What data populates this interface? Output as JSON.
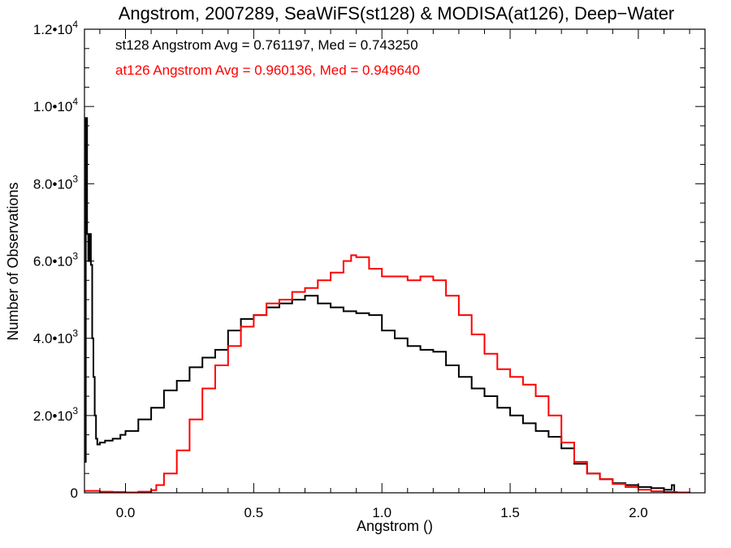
{
  "chart_data": {
    "type": "line",
    "title": "Angstrom, 2007289, SeaWiFS(st128) & MODISA(at126), Deep−Water",
    "xlabel": "Angstrom ()",
    "ylabel": "Number of Observations",
    "xlim": [
      -0.16,
      2.26
    ],
    "ylim": [
      0,
      12000
    ],
    "x_ticks": [
      {
        "value": 0.0,
        "label": "0.0"
      },
      {
        "value": 0.5,
        "label": "0.5"
      },
      {
        "value": 1.0,
        "label": "1.0"
      },
      {
        "value": 1.5,
        "label": "1.5"
      },
      {
        "value": 2.0,
        "label": "2.0"
      }
    ],
    "y_ticks": [
      {
        "value": 0,
        "label": "0",
        "exp": ""
      },
      {
        "value": 2000,
        "label": "2.0•10",
        "exp": "3"
      },
      {
        "value": 4000,
        "label": "4.0•10",
        "exp": "3"
      },
      {
        "value": 6000,
        "label": "6.0•10",
        "exp": "3"
      },
      {
        "value": 8000,
        "label": "8.0•10",
        "exp": "3"
      },
      {
        "value": 10000,
        "label": "1.0•10",
        "exp": "4"
      },
      {
        "value": 12000,
        "label": "1.2•10",
        "exp": "4"
      }
    ],
    "annotations": [
      {
        "text": "st128 Angstrom Avg = 0.761197, Med = 0.743250",
        "color": "#000000"
      },
      {
        "text": "at126 Angstrom Avg = 0.960136, Med = 0.949640",
        "color": "#ff0000"
      }
    ],
    "grid": false,
    "step": true,
    "series": [
      {
        "color": "#000000",
        "x": [
          -0.16,
          -0.155,
          -0.15,
          -0.145,
          -0.14,
          -0.135,
          -0.13,
          -0.125,
          -0.12,
          -0.115,
          -0.11,
          -0.1,
          -0.08,
          -0.05,
          -0.02,
          0.0,
          0.05,
          0.1,
          0.15,
          0.2,
          0.25,
          0.3,
          0.35,
          0.4,
          0.45,
          0.5,
          0.55,
          0.6,
          0.65,
          0.7,
          0.75,
          0.8,
          0.85,
          0.9,
          0.95,
          1.0,
          1.05,
          1.1,
          1.15,
          1.2,
          1.25,
          1.3,
          1.35,
          1.4,
          1.45,
          1.5,
          1.55,
          1.6,
          1.65,
          1.7,
          1.75,
          1.8,
          1.85,
          1.9,
          1.95,
          2.0,
          2.05,
          2.1,
          2.13,
          2.14
        ],
        "y": [
          800,
          9700,
          6700,
          6000,
          6700,
          5900,
          4000,
          3000,
          2000,
          1400,
          1250,
          1300,
          1350,
          1400,
          1500,
          1600,
          1900,
          2200,
          2650,
          2900,
          3250,
          3500,
          3700,
          4200,
          4500,
          4600,
          4800,
          4900,
          5000,
          5100,
          4900,
          4800,
          4700,
          4650,
          4600,
          4200,
          4000,
          3800,
          3700,
          3650,
          3300,
          3000,
          2700,
          2500,
          2200,
          2000,
          1800,
          1600,
          1450,
          1150,
          750,
          500,
          350,
          250,
          200,
          150,
          120,
          80,
          200,
          0
        ]
      },
      {
        "color": "#ff0000",
        "x": [
          -0.16,
          -0.1,
          -0.05,
          0.0,
          0.05,
          0.1,
          0.12,
          0.15,
          0.2,
          0.25,
          0.3,
          0.35,
          0.4,
          0.45,
          0.5,
          0.55,
          0.6,
          0.65,
          0.7,
          0.75,
          0.8,
          0.85,
          0.88,
          0.9,
          0.95,
          1.0,
          1.05,
          1.1,
          1.15,
          1.2,
          1.25,
          1.3,
          1.35,
          1.4,
          1.45,
          1.5,
          1.55,
          1.6,
          1.65,
          1.7,
          1.75,
          1.8,
          1.85,
          1.9,
          1.95,
          2.0,
          2.05,
          2.1,
          2.15,
          2.2
        ],
        "y": [
          50,
          30,
          20,
          10,
          30,
          70,
          200,
          500,
          1100,
          1900,
          2700,
          3300,
          3800,
          4300,
          4600,
          4900,
          5000,
          5200,
          5300,
          5500,
          5700,
          6000,
          6150,
          6100,
          5800,
          5600,
          5600,
          5500,
          5600,
          5500,
          5100,
          4600,
          4100,
          3600,
          3200,
          3000,
          2800,
          2500,
          2000,
          1300,
          800,
          500,
          350,
          230,
          150,
          80,
          40,
          20,
          10,
          0
        ]
      }
    ]
  }
}
